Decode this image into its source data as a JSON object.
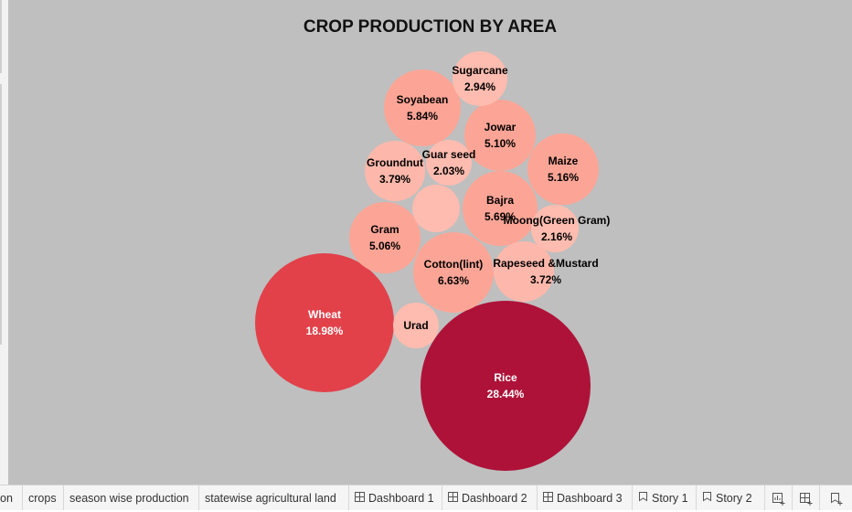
{
  "chart_data": {
    "type": "bubble",
    "title": "CROP PRODUCTION BY  AREA",
    "bubbles": [
      {
        "name": "Rice",
        "label": "28.44%",
        "value": 28.44,
        "color": "#ae1238",
        "text_color": "#ffffff"
      },
      {
        "name": "Wheat",
        "label": "18.98%",
        "value": 18.98,
        "color": "#e2414a",
        "text_color": "#ffffff"
      },
      {
        "name": "Cotton(lint)",
        "label": "6.63%",
        "value": 6.63,
        "color": "#fca596",
        "text_color": "#000000"
      },
      {
        "name": "Soyabean",
        "label": "5.84%",
        "value": 5.84,
        "color": "#fca596",
        "text_color": "#000000"
      },
      {
        "name": "Bajra",
        "label": "5.69%",
        "value": 5.69,
        "color": "#fca596",
        "text_color": "#000000"
      },
      {
        "name": "Maize",
        "label": "5.16%",
        "value": 5.16,
        "color": "#fca596",
        "text_color": "#000000"
      },
      {
        "name": "Jowar",
        "label": "5.10%",
        "value": 5.1,
        "color": "#fca596",
        "text_color": "#000000"
      },
      {
        "name": "Gram",
        "label": "5.06%",
        "value": 5.06,
        "color": "#fca596",
        "text_color": "#000000"
      },
      {
        "name": "Groundnut",
        "label": "3.79%",
        "value": 3.79,
        "color": "#fdb8ab",
        "text_color": "#000000"
      },
      {
        "name": "Rapeseed &Mustard",
        "label": "3.72%",
        "value": 3.72,
        "color": "#fdb8ab",
        "text_color": "#000000"
      },
      {
        "name": "Sugarcane",
        "label": "2.94%",
        "value": 2.94,
        "color": "#fdbcaf",
        "text_color": "#000000"
      },
      {
        "name": "Moong(Green Gram)",
        "label": "2.16%",
        "value": 2.16,
        "color": "#fdbcaf",
        "text_color": "#000000"
      },
      {
        "name": "Guar seed",
        "label": "2.03%",
        "value": 2.03,
        "color": "#fdbcaf",
        "text_color": "#000000"
      },
      {
        "name": "",
        "label": "",
        "value": 2.0,
        "color": "#fdbcaf",
        "text_color": "#000000"
      },
      {
        "name": "Urad",
        "label": "",
        "value": 1.9,
        "color": "#fdbcaf",
        "text_color": "#000000"
      }
    ]
  },
  "tabs": [
    {
      "label": "on"
    },
    {
      "label": "crops"
    },
    {
      "label": "season wise production"
    },
    {
      "label": "statewise agricultural land"
    },
    {
      "label": "Dashboard 1",
      "icon": "dashboard-icon"
    },
    {
      "label": "Dashboard 2",
      "icon": "dashboard-icon"
    },
    {
      "label": "Dashboard 3",
      "icon": "dashboard-icon"
    },
    {
      "label": "Story 1",
      "icon": "story-icon"
    },
    {
      "label": "Story 2",
      "icon": "story-icon"
    }
  ],
  "tools": [
    {
      "icon": "new-worksheet-icon"
    },
    {
      "icon": "new-dashboard-icon"
    },
    {
      "icon": "new-story-icon"
    }
  ]
}
